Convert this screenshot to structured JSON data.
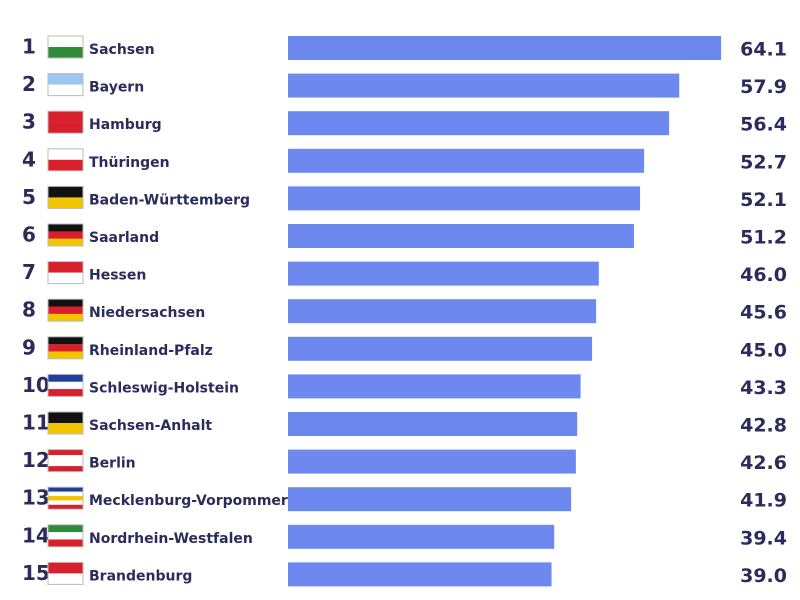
{
  "chart_data": {
    "type": "bar",
    "orientation": "horizontal",
    "ranks": [
      "1",
      "2",
      "3",
      "4",
      "5",
      "6",
      "7",
      "8",
      "9",
      "10",
      "11",
      "12",
      "13",
      "14",
      "15"
    ],
    "categories": [
      "Sachsen",
      "Bayern",
      "Hamburg",
      "Thüringen",
      "Baden-Württemberg",
      "Saarland",
      "Hessen",
      "Niedersachsen",
      "Rheinland-Pfalz",
      "Schleswig-Holstein",
      "Sachsen-Anhalt",
      "Berlin",
      "Mecklenburg-Vorpommern",
      "Nordrhein-Westfalen",
      "Brandenburg"
    ],
    "values": [
      64.1,
      57.9,
      56.4,
      52.7,
      52.1,
      51.2,
      46.0,
      45.6,
      45.0,
      43.3,
      42.8,
      42.6,
      41.9,
      39.4,
      39.0
    ],
    "value_labels": [
      "64.1",
      "57.9",
      "56.4",
      "52.7",
      "52.1",
      "51.2",
      "46.0",
      "45.6",
      "45.0",
      "43.3",
      "42.8",
      "42.6",
      "41.9",
      "39.4",
      "39.0"
    ],
    "color": "#6d89ef",
    "xlim": [
      0,
      70
    ]
  }
}
